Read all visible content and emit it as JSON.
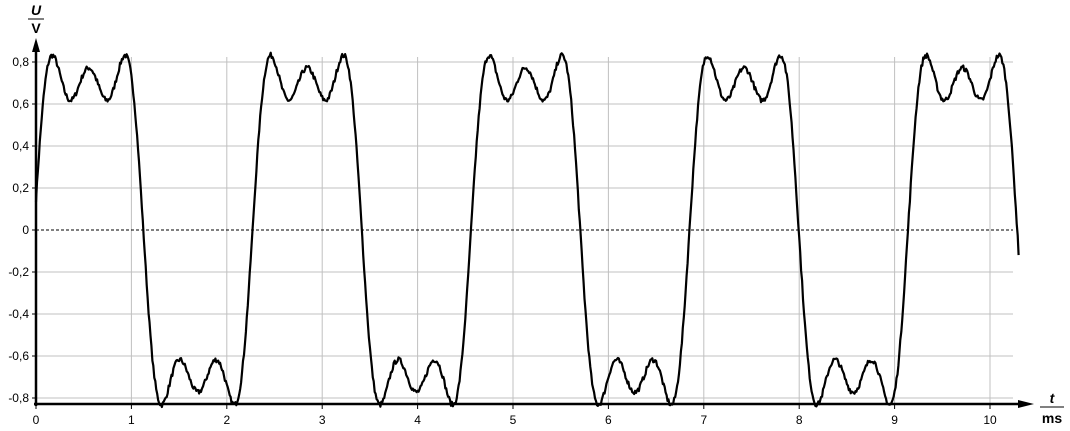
{
  "chart_data": {
    "type": "line",
    "xlabel": {
      "symbol": "t",
      "unit": "ms"
    },
    "ylabel": {
      "symbol": "U",
      "unit": "V"
    },
    "xlim": [
      0,
      10.3
    ],
    "ylim": [
      -0.83,
      0.88
    ],
    "xticks": [
      "0",
      "1",
      "2",
      "3",
      "4",
      "5",
      "6",
      "7",
      "8",
      "9",
      "10"
    ],
    "yticks": [
      "0,8",
      "0,6",
      "0,4",
      "0,2",
      "0",
      "-0,2",
      "-0,4",
      "-0,6",
      "-0,8"
    ],
    "ytick_values": [
      0.8,
      0.6,
      0.4,
      0.2,
      0,
      -0.2,
      -0.4,
      -0.6,
      -0.8
    ],
    "grid": true,
    "zero_line": "dashed",
    "series": [
      {
        "model": "square-wave Fourier partial sum with small noise",
        "harmonics": [
          1,
          3,
          5
        ],
        "amplitude_V": 0.7,
        "period_ms": 2.29,
        "phase_ms": -0.02,
        "t_range_ms": [
          0,
          10.3
        ],
        "color": "#000000"
      }
    ]
  }
}
